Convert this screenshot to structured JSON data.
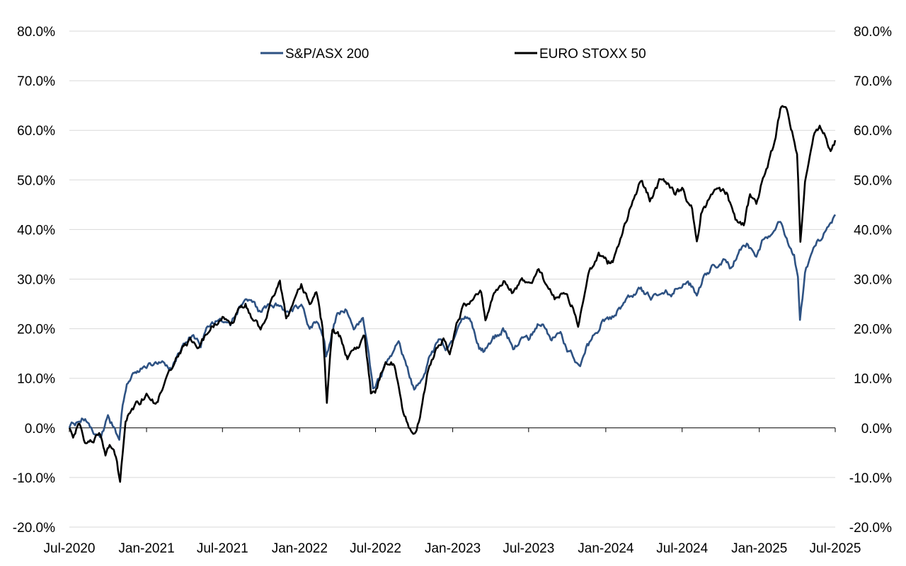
{
  "chart_data": {
    "type": "line",
    "title": "",
    "xlabel": "",
    "ylabel": "",
    "ylim": [
      -0.2,
      0.8
    ],
    "y_ticks": [
      -0.2,
      -0.1,
      0.0,
      0.1,
      0.2,
      0.3,
      0.4,
      0.5,
      0.6,
      0.7,
      0.8
    ],
    "y_tick_labels": [
      "-20.0%",
      "-10.0%",
      "0.0%",
      "10.0%",
      "20.0%",
      "30.0%",
      "40.0%",
      "50.0%",
      "60.0%",
      "70.0%",
      "80.0%"
    ],
    "secondary_y_axis": true,
    "xlim": [
      "2020-07-01",
      "2025-07-01"
    ],
    "x_ticks": [
      "2020-07-01",
      "2021-01-01",
      "2021-07-01",
      "2022-01-01",
      "2022-07-01",
      "2023-01-01",
      "2023-07-01",
      "2024-01-01",
      "2024-07-01",
      "2025-01-01",
      "2025-07-01"
    ],
    "x_tick_labels": [
      "Jul-2020",
      "Jan-2021",
      "Jul-2021",
      "Jan-2022",
      "Jul-2022",
      "Jan-2023",
      "Jul-2023",
      "Jan-2024",
      "Jul-2024",
      "Jan-2025",
      "Jul-2025"
    ],
    "grid": "horizontal",
    "legend_position": "top",
    "series": [
      {
        "name": "S&P/ASX 200",
        "color": "#2e5283",
        "points": [
          [
            "2020-07-01",
            0.0
          ],
          [
            "2020-07-20",
            0.01
          ],
          [
            "2020-08-05",
            0.02
          ],
          [
            "2020-08-25",
            0.0
          ],
          [
            "2020-09-15",
            -0.02
          ],
          [
            "2020-10-01",
            0.02
          ],
          [
            "2020-10-15",
            0.0
          ],
          [
            "2020-10-28",
            -0.02
          ],
          [
            "2020-11-05",
            0.05
          ],
          [
            "2020-11-15",
            0.09
          ],
          [
            "2020-11-30",
            0.11
          ],
          [
            "2020-12-15",
            0.12
          ],
          [
            "2021-01-01",
            0.125
          ],
          [
            "2021-01-20",
            0.13
          ],
          [
            "2021-02-10",
            0.14
          ],
          [
            "2021-03-01",
            0.12
          ],
          [
            "2021-03-25",
            0.16
          ],
          [
            "2021-04-20",
            0.19
          ],
          [
            "2021-05-10",
            0.17
          ],
          [
            "2021-06-01",
            0.21
          ],
          [
            "2021-06-20",
            0.22
          ],
          [
            "2021-07-01",
            0.22
          ],
          [
            "2021-07-20",
            0.21
          ],
          [
            "2021-08-10",
            0.24
          ],
          [
            "2021-08-25",
            0.26
          ],
          [
            "2021-09-10",
            0.25
          ],
          [
            "2021-09-30",
            0.23
          ],
          [
            "2021-10-15",
            0.24
          ],
          [
            "2021-11-05",
            0.245
          ],
          [
            "2021-11-30",
            0.23
          ],
          [
            "2021-12-15",
            0.24
          ],
          [
            "2022-01-05",
            0.25
          ],
          [
            "2022-01-25",
            0.2
          ],
          [
            "2022-02-10",
            0.22
          ],
          [
            "2022-03-01",
            0.18
          ],
          [
            "2022-03-05",
            0.15
          ],
          [
            "2022-04-01",
            0.23
          ],
          [
            "2022-04-20",
            0.24
          ],
          [
            "2022-05-10",
            0.2
          ],
          [
            "2022-06-01",
            0.22
          ],
          [
            "2022-06-15",
            0.14
          ],
          [
            "2022-06-25",
            0.08
          ],
          [
            "2022-07-15",
            0.11
          ],
          [
            "2022-08-10",
            0.15
          ],
          [
            "2022-08-25",
            0.17
          ],
          [
            "2022-09-15",
            0.12
          ],
          [
            "2022-10-01",
            0.075
          ],
          [
            "2022-10-20",
            0.1
          ],
          [
            "2022-11-10",
            0.15
          ],
          [
            "2022-12-01",
            0.18
          ],
          [
            "2022-12-15",
            0.165
          ],
          [
            "2023-01-01",
            0.18
          ],
          [
            "2023-01-20",
            0.22
          ],
          [
            "2023-02-10",
            0.22
          ],
          [
            "2023-03-05",
            0.16
          ],
          [
            "2023-03-15",
            0.155
          ],
          [
            "2023-04-10",
            0.18
          ],
          [
            "2023-05-01",
            0.2
          ],
          [
            "2023-05-25",
            0.16
          ],
          [
            "2023-06-15",
            0.18
          ],
          [
            "2023-07-01",
            0.18
          ],
          [
            "2023-07-25",
            0.21
          ],
          [
            "2023-08-10",
            0.2
          ],
          [
            "2023-08-25",
            0.18
          ],
          [
            "2023-09-15",
            0.19
          ],
          [
            "2023-10-01",
            0.16
          ],
          [
            "2023-10-20",
            0.14
          ],
          [
            "2023-11-01",
            0.13
          ],
          [
            "2023-11-15",
            0.16
          ],
          [
            "2023-12-01",
            0.18
          ],
          [
            "2023-12-20",
            0.21
          ],
          [
            "2024-01-05",
            0.22
          ],
          [
            "2024-01-25",
            0.23
          ],
          [
            "2024-02-10",
            0.25
          ],
          [
            "2024-03-05",
            0.27
          ],
          [
            "2024-03-25",
            0.28
          ],
          [
            "2024-04-20",
            0.26
          ],
          [
            "2024-05-15",
            0.28
          ],
          [
            "2024-06-05",
            0.27
          ],
          [
            "2024-06-25",
            0.29
          ],
          [
            "2024-07-15",
            0.3
          ],
          [
            "2024-08-05",
            0.27
          ],
          [
            "2024-08-25",
            0.31
          ],
          [
            "2024-09-15",
            0.33
          ],
          [
            "2024-10-10",
            0.34
          ],
          [
            "2024-10-25",
            0.32
          ],
          [
            "2024-11-15",
            0.36
          ],
          [
            "2024-12-05",
            0.37
          ],
          [
            "2024-12-25",
            0.35
          ],
          [
            "2025-01-10",
            0.38
          ],
          [
            "2025-02-05",
            0.4
          ],
          [
            "2025-02-20",
            0.415
          ],
          [
            "2025-03-10",
            0.37
          ],
          [
            "2025-03-25",
            0.35
          ],
          [
            "2025-04-03",
            0.3
          ],
          [
            "2025-04-08",
            0.22
          ],
          [
            "2025-04-20",
            0.31
          ],
          [
            "2025-05-10",
            0.36
          ],
          [
            "2025-06-01",
            0.39
          ],
          [
            "2025-06-20",
            0.42
          ],
          [
            "2025-07-01",
            0.43
          ]
        ]
      },
      {
        "name": "EURO STOXX 50",
        "color": "#000000",
        "points": [
          [
            "2020-07-01",
            0.0
          ],
          [
            "2020-07-10",
            -0.02
          ],
          [
            "2020-07-25",
            0.01
          ],
          [
            "2020-08-10",
            -0.03
          ],
          [
            "2020-08-25",
            -0.02
          ],
          [
            "2020-09-10",
            -0.01
          ],
          [
            "2020-09-25",
            -0.05
          ],
          [
            "2020-10-05",
            -0.03
          ],
          [
            "2020-10-20",
            -0.06
          ],
          [
            "2020-10-30",
            -0.11
          ],
          [
            "2020-11-05",
            -0.05
          ],
          [
            "2020-11-12",
            0.02
          ],
          [
            "2020-11-30",
            0.04
          ],
          [
            "2020-12-15",
            0.05
          ],
          [
            "2021-01-01",
            0.07
          ],
          [
            "2021-01-20",
            0.05
          ],
          [
            "2021-02-10",
            0.08
          ],
          [
            "2021-03-01",
            0.12
          ],
          [
            "2021-03-20",
            0.15
          ],
          [
            "2021-04-15",
            0.18
          ],
          [
            "2021-05-05",
            0.17
          ],
          [
            "2021-05-25",
            0.19
          ],
          [
            "2021-06-15",
            0.21
          ],
          [
            "2021-07-01",
            0.22
          ],
          [
            "2021-07-20",
            0.2
          ],
          [
            "2021-08-10",
            0.24
          ],
          [
            "2021-08-25",
            0.25
          ],
          [
            "2021-09-10",
            0.22
          ],
          [
            "2021-09-30",
            0.2
          ],
          [
            "2021-10-20",
            0.24
          ],
          [
            "2021-11-15",
            0.3
          ],
          [
            "2021-11-30",
            0.22
          ],
          [
            "2021-12-15",
            0.25
          ],
          [
            "2022-01-05",
            0.29
          ],
          [
            "2022-01-25",
            0.25
          ],
          [
            "2022-02-10",
            0.28
          ],
          [
            "2022-02-25",
            0.2
          ],
          [
            "2022-03-07",
            0.05
          ],
          [
            "2022-03-20",
            0.2
          ],
          [
            "2022-04-10",
            0.18
          ],
          [
            "2022-04-25",
            0.14
          ],
          [
            "2022-05-15",
            0.16
          ],
          [
            "2022-06-05",
            0.18
          ],
          [
            "2022-06-20",
            0.07
          ],
          [
            "2022-07-05",
            0.08
          ],
          [
            "2022-07-25",
            0.14
          ],
          [
            "2022-08-15",
            0.13
          ],
          [
            "2022-09-05",
            0.03
          ],
          [
            "2022-09-29",
            -0.02
          ],
          [
            "2022-10-15",
            0.02
          ],
          [
            "2022-11-01",
            0.1
          ],
          [
            "2022-11-20",
            0.15
          ],
          [
            "2022-12-10",
            0.18
          ],
          [
            "2022-12-25",
            0.14
          ],
          [
            "2023-01-10",
            0.2
          ],
          [
            "2023-01-25",
            0.24
          ],
          [
            "2023-02-15",
            0.26
          ],
          [
            "2023-03-10",
            0.27
          ],
          [
            "2023-03-20",
            0.22
          ],
          [
            "2023-04-15",
            0.28
          ],
          [
            "2023-05-05",
            0.3
          ],
          [
            "2023-05-25",
            0.27
          ],
          [
            "2023-06-15",
            0.3
          ],
          [
            "2023-07-01",
            0.29
          ],
          [
            "2023-07-25",
            0.32
          ],
          [
            "2023-08-15",
            0.28
          ],
          [
            "2023-09-01",
            0.26
          ],
          [
            "2023-09-25",
            0.27
          ],
          [
            "2023-10-15",
            0.24
          ],
          [
            "2023-10-27",
            0.2
          ],
          [
            "2023-11-10",
            0.27
          ],
          [
            "2023-11-25",
            0.32
          ],
          [
            "2023-12-15",
            0.35
          ],
          [
            "2024-01-05",
            0.33
          ],
          [
            "2024-01-20",
            0.34
          ],
          [
            "2024-02-10",
            0.4
          ],
          [
            "2024-03-05",
            0.46
          ],
          [
            "2024-03-25",
            0.5
          ],
          [
            "2024-04-15",
            0.46
          ],
          [
            "2024-05-10",
            0.5
          ],
          [
            "2024-05-25",
            0.49
          ],
          [
            "2024-06-15",
            0.47
          ],
          [
            "2024-07-01",
            0.48
          ],
          [
            "2024-07-25",
            0.44
          ],
          [
            "2024-08-05",
            0.37
          ],
          [
            "2024-08-15",
            0.43
          ],
          [
            "2024-09-05",
            0.46
          ],
          [
            "2024-09-25",
            0.48
          ],
          [
            "2024-10-15",
            0.47
          ],
          [
            "2024-11-05",
            0.42
          ],
          [
            "2024-11-25",
            0.41
          ],
          [
            "2024-12-10",
            0.47
          ],
          [
            "2024-12-25",
            0.45
          ],
          [
            "2025-01-15",
            0.52
          ],
          [
            "2025-02-01",
            0.56
          ],
          [
            "2025-02-20",
            0.64
          ],
          [
            "2025-03-05",
            0.65
          ],
          [
            "2025-03-20",
            0.6
          ],
          [
            "2025-04-01",
            0.55
          ],
          [
            "2025-04-09",
            0.38
          ],
          [
            "2025-04-20",
            0.5
          ],
          [
            "2025-05-10",
            0.58
          ],
          [
            "2025-05-25",
            0.61
          ],
          [
            "2025-06-10",
            0.59
          ],
          [
            "2025-06-20",
            0.56
          ],
          [
            "2025-07-01",
            0.58
          ]
        ]
      }
    ]
  }
}
